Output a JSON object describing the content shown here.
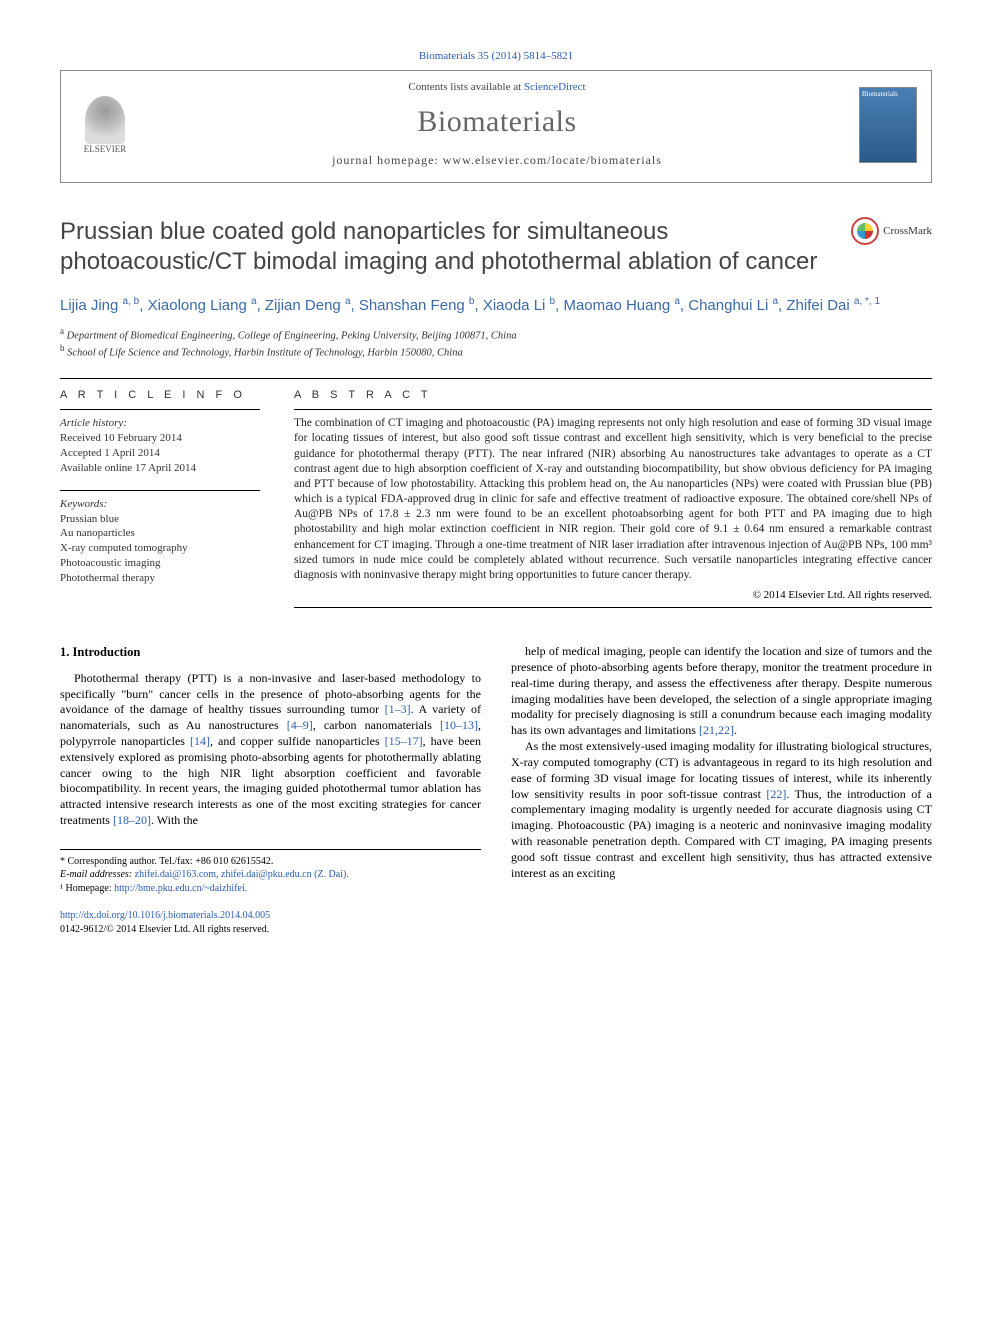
{
  "citation": "Biomaterials 35 (2014) 5814–5821",
  "header": {
    "contents_prefix": "Contents lists available at ",
    "contents_link": "ScienceDirect",
    "journal": "Biomaterials",
    "homepage_prefix": "journal homepage: ",
    "homepage_url": "www.elsevier.com/locate/biomaterials",
    "publisher": "ELSEVIER",
    "cover_label": "Biomaterials"
  },
  "title": "Prussian blue coated gold nanoparticles for simultaneous photoacoustic/CT bimodal imaging and photothermal ablation of cancer",
  "crossmark": "CrossMark",
  "authors_html": "Lijia Jing <sup>a, b</sup>, Xiaolong Liang <sup>a</sup>, Zijian Deng <sup>a</sup>, Shanshan Feng <sup>b</sup>, Xiaoda Li <sup>b</sup>, Maomao Huang <sup>a</sup>, Changhui Li <sup>a</sup>, Zhifei Dai <sup>a, *, 1</sup>",
  "affiliations": [
    {
      "sup": "a",
      "text": " Department of Biomedical Engineering, College of Engineering, Peking University, Beijing 100871, China"
    },
    {
      "sup": "b",
      "text": " School of Life Science and Technology, Harbin Institute of Technology, Harbin 150080, China"
    }
  ],
  "article_info": {
    "heading": "A R T I C L E  I N F O",
    "history_label": "Article history:",
    "received": "Received 10 February 2014",
    "accepted": "Accepted 1 April 2014",
    "online": "Available online 17 April 2014",
    "keywords_label": "Keywords:",
    "keywords": [
      "Prussian blue",
      "Au nanoparticles",
      "X-ray computed tomography",
      "Photoacoustic imaging",
      "Photothermal therapy"
    ]
  },
  "abstract": {
    "heading": "A B S T R A C T",
    "text": "The combination of CT imaging and photoacoustic (PA) imaging represents not only high resolution and ease of forming 3D visual image for locating tissues of interest, but also good soft tissue contrast and excellent high sensitivity, which is very beneficial to the precise guidance for photothermal therapy (PTT). The near infrared (NIR) absorbing Au nanostructures take advantages to operate as a CT contrast agent due to high absorption coefficient of X-ray and outstanding biocompatibility, but show obvious deficiency for PA imaging and PTT because of low photostability. Attacking this problem head on, the Au nanoparticles (NPs) were coated with Prussian blue (PB) which is a typical FDA-approved drug in clinic for safe and effective treatment of radioactive exposure. The obtained core/shell NPs of Au@PB NPs of 17.8 ± 2.3 nm were found to be an excellent photoabsorbing agent for both PTT and PA imaging due to high photostability and high molar extinction coefficient in NIR region. Their gold core of 9.1 ± 0.64 nm ensured a remarkable contrast enhancement for CT imaging. Through a one-time treatment of NIR laser irradiation after intravenous injection of Au@PB NPs, 100 mm³ sized tumors in nude mice could be completely ablated without recurrence. Such versatile nanoparticles integrating effective cancer diagnosis with noninvasive therapy might bring opportunities to future cancer therapy.",
    "copyright": "© 2014 Elsevier Ltd. All rights reserved."
  },
  "body": {
    "section_heading": "1. Introduction",
    "col1_p1": "Photothermal therapy (PTT) is a non-invasive and laser-based methodology to specifically \"burn\" cancer cells in the presence of photo-absorbing agents for the avoidance of the damage of healthy tissues surrounding tumor [1–3]. A variety of nanomaterials, such as Au nanostructures [4–9], carbon nanomaterials [10–13], polypyrrole nanoparticles [14], and copper sulfide nanoparticles [15–17], have been extensively explored as promising photo-absorbing agents for photothermally ablating cancer owing to the high NIR light absorption coefficient and favorable biocompatibility. In recent years, the imaging guided photothermal tumor ablation has attracted intensive research interests as one of the most exciting strategies for cancer treatments [18–20]. With the",
    "col2_p1": "help of medical imaging, people can identify the location and size of tumors and the presence of photo-absorbing agents before therapy, monitor the treatment procedure in real-time during therapy, and assess the effectiveness after therapy. Despite numerous imaging modalities have been developed, the selection of a single appropriate imaging modality for precisely diagnosing is still a conundrum because each imaging modality has its own advantages and limitations [21,22].",
    "col2_p2": "As the most extensively-used imaging modality for illustrating biological structures, X-ray computed tomography (CT) is advantageous in regard to its high resolution and ease of forming 3D visual image for locating tissues of interest, while its inherently low sensitivity results in poor soft-tissue contrast [22]. Thus, the introduction of a complementary imaging modality is urgently needed for accurate diagnosis using CT imaging. Photoacoustic (PA) imaging is a neoteric and noninvasive imaging modality with reasonable penetration depth. Compared with CT imaging, PA imaging presents good soft tissue contrast and excellent high sensitivity, thus has attracted extensive interest as an exciting"
  },
  "footnotes": {
    "corresponding": "* Corresponding author. Tel./fax: +86 010 62615542.",
    "email_label": "E-mail addresses:",
    "emails": " zhifei.dai@163.com, zhifei.dai@pku.edu.cn (Z. Dai).",
    "homepage_label": "¹ Homepage:",
    "homepage": " http://bme.pku.edu.cn/~daizhifei."
  },
  "doi": {
    "url": "http://dx.doi.org/10.1016/j.biomaterials.2014.04.005",
    "issn": "0142-9612/© 2014 Elsevier Ltd. All rights reserved."
  },
  "colors": {
    "link": "#2a5db0",
    "author": "#3a6aa8",
    "title": "#444444",
    "text": "#222222"
  }
}
